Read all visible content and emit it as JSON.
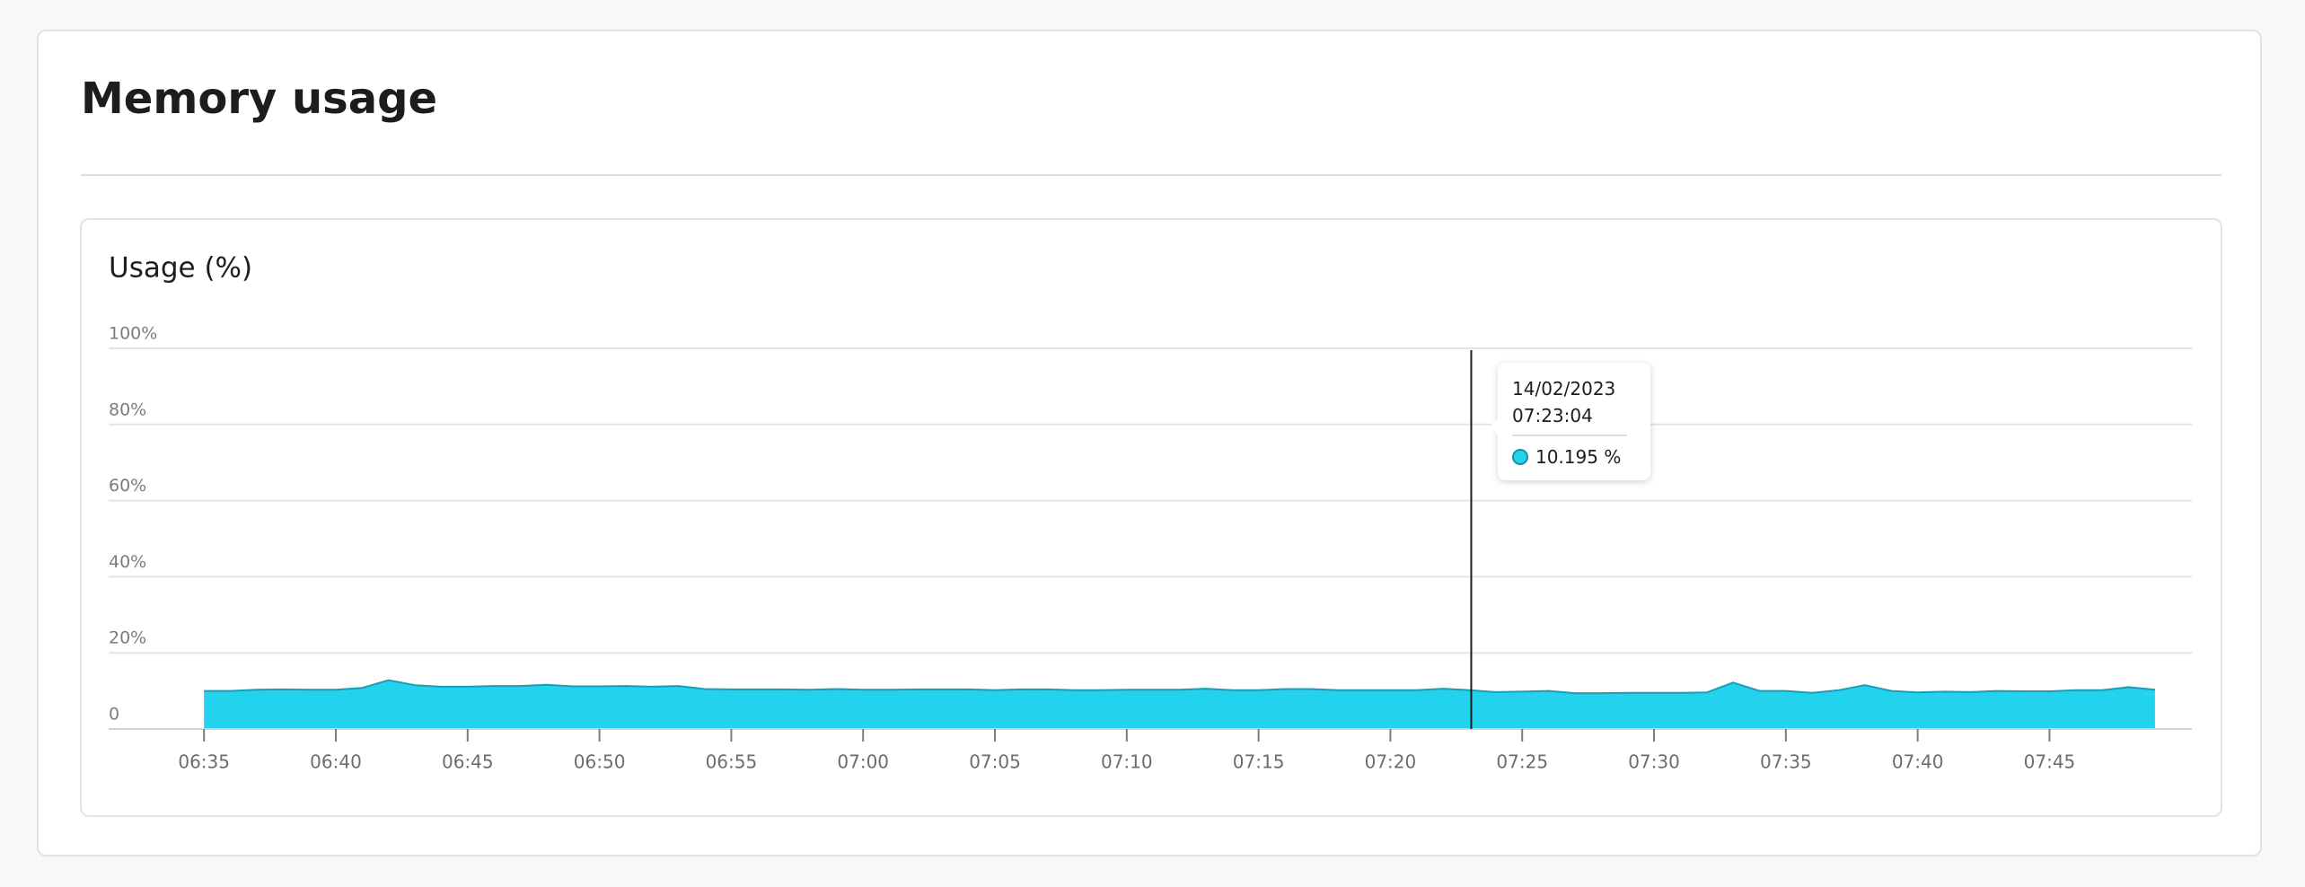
{
  "header": {
    "title": "Memory usage"
  },
  "chart_data": {
    "type": "area",
    "title": "Usage (%)",
    "x": [
      "06:35",
      "06:36",
      "06:37",
      "06:38",
      "06:39",
      "06:40",
      "06:41",
      "06:42",
      "06:43",
      "06:44",
      "06:45",
      "06:46",
      "06:47",
      "06:48",
      "06:49",
      "06:50",
      "06:51",
      "06:52",
      "06:53",
      "06:54",
      "06:55",
      "06:56",
      "06:57",
      "06:58",
      "06:59",
      "07:00",
      "07:01",
      "07:02",
      "07:03",
      "07:04",
      "07:05",
      "07:06",
      "07:07",
      "07:08",
      "07:09",
      "07:10",
      "07:11",
      "07:12",
      "07:13",
      "07:14",
      "07:15",
      "07:16",
      "07:17",
      "07:18",
      "07:19",
      "07:20",
      "07:21",
      "07:22",
      "07:23",
      "07:24",
      "07:25",
      "07:26",
      "07:27",
      "07:28",
      "07:29",
      "07:30",
      "07:31",
      "07:32",
      "07:33",
      "07:34",
      "07:35",
      "07:36",
      "07:37",
      "07:38",
      "07:39",
      "07:40",
      "07:41",
      "07:42",
      "07:43",
      "07:44",
      "07:45",
      "07:46",
      "07:47",
      "07:48",
      "07:49"
    ],
    "values": [
      10,
      10,
      10.3,
      10.4,
      10.3,
      10.3,
      10.8,
      12.8,
      11.5,
      11.1,
      11.1,
      11.3,
      11.3,
      11.6,
      11.2,
      11.2,
      11.3,
      11.1,
      11.3,
      10.5,
      10.4,
      10.4,
      10.4,
      10.3,
      10.5,
      10.3,
      10.3,
      10.4,
      10.4,
      10.4,
      10.2,
      10.4,
      10.4,
      10.2,
      10.2,
      10.3,
      10.3,
      10.3,
      10.6,
      10.2,
      10.2,
      10.5,
      10.5,
      10.2,
      10.2,
      10.2,
      10.2,
      10.6,
      10.2,
      9.7,
      9.8,
      10,
      9.4,
      9.4,
      9.5,
      9.5,
      9.5,
      9.6,
      12.2,
      10,
      10,
      9.5,
      10.2,
      11.5,
      10,
      9.6,
      9.8,
      9.7,
      10,
      9.9,
      9.9,
      10.2,
      10.2,
      11,
      10.3
    ],
    "color": "#23d2ec",
    "line_color": "#1a9db5",
    "xlim": [
      "06:31:23",
      "07:50:24"
    ],
    "xticks": [
      "06:35",
      "06:40",
      "06:45",
      "06:50",
      "06:55",
      "07:00",
      "07:05",
      "07:10",
      "07:15",
      "07:20",
      "07:25",
      "07:30",
      "07:35",
      "07:40",
      "07:45"
    ],
    "ylim": [
      0,
      100
    ],
    "yticks": [
      0,
      {
        "value": 20,
        "label": "20%"
      },
      {
        "value": 40,
        "label": "40%"
      },
      {
        "value": 60,
        "label": "60%"
      },
      {
        "value": 80,
        "label": "80%"
      },
      {
        "value": 100,
        "label": "100%"
      }
    ],
    "grid": true,
    "tooltip": {
      "date": "14/02/2023",
      "time": "07:23:04",
      "value_label": "10.195 %"
    }
  }
}
